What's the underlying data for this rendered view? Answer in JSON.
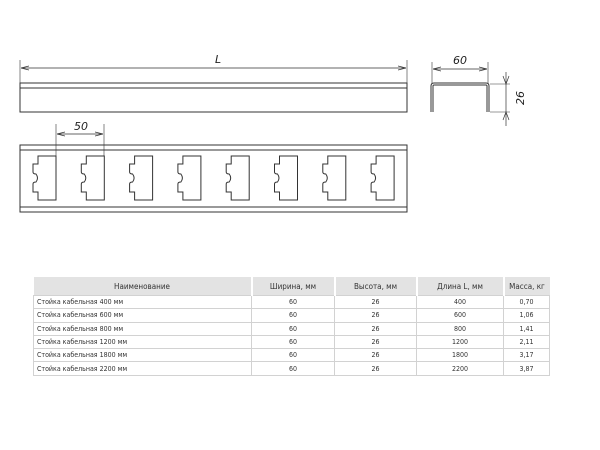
{
  "drawing": {
    "length_label": "L",
    "width_label": "60",
    "height_label": "26",
    "pitch_label": "50",
    "slot_count": 8
  },
  "table": {
    "headers": [
      "Наименование",
      "Ширина, мм",
      "Высота, мм",
      "Длина L, мм",
      "Масса, кг"
    ],
    "rows": [
      [
        "Стойка кабельная 400 мм",
        "60",
        "26",
        "400",
        "0,70"
      ],
      [
        "Стойка кабельная 600 мм",
        "60",
        "26",
        "600",
        "1,06"
      ],
      [
        "Стойка кабельная 800 мм",
        "60",
        "26",
        "800",
        "1,41"
      ],
      [
        "Стойка кабельная 1200 мм",
        "60",
        "26",
        "1200",
        "2,11"
      ],
      [
        "Стойка кабельная 1800 мм",
        "60",
        "26",
        "1800",
        "3,17"
      ],
      [
        "Стойка кабельная 2200 мм",
        "60",
        "26",
        "2200",
        "3,87"
      ]
    ]
  }
}
